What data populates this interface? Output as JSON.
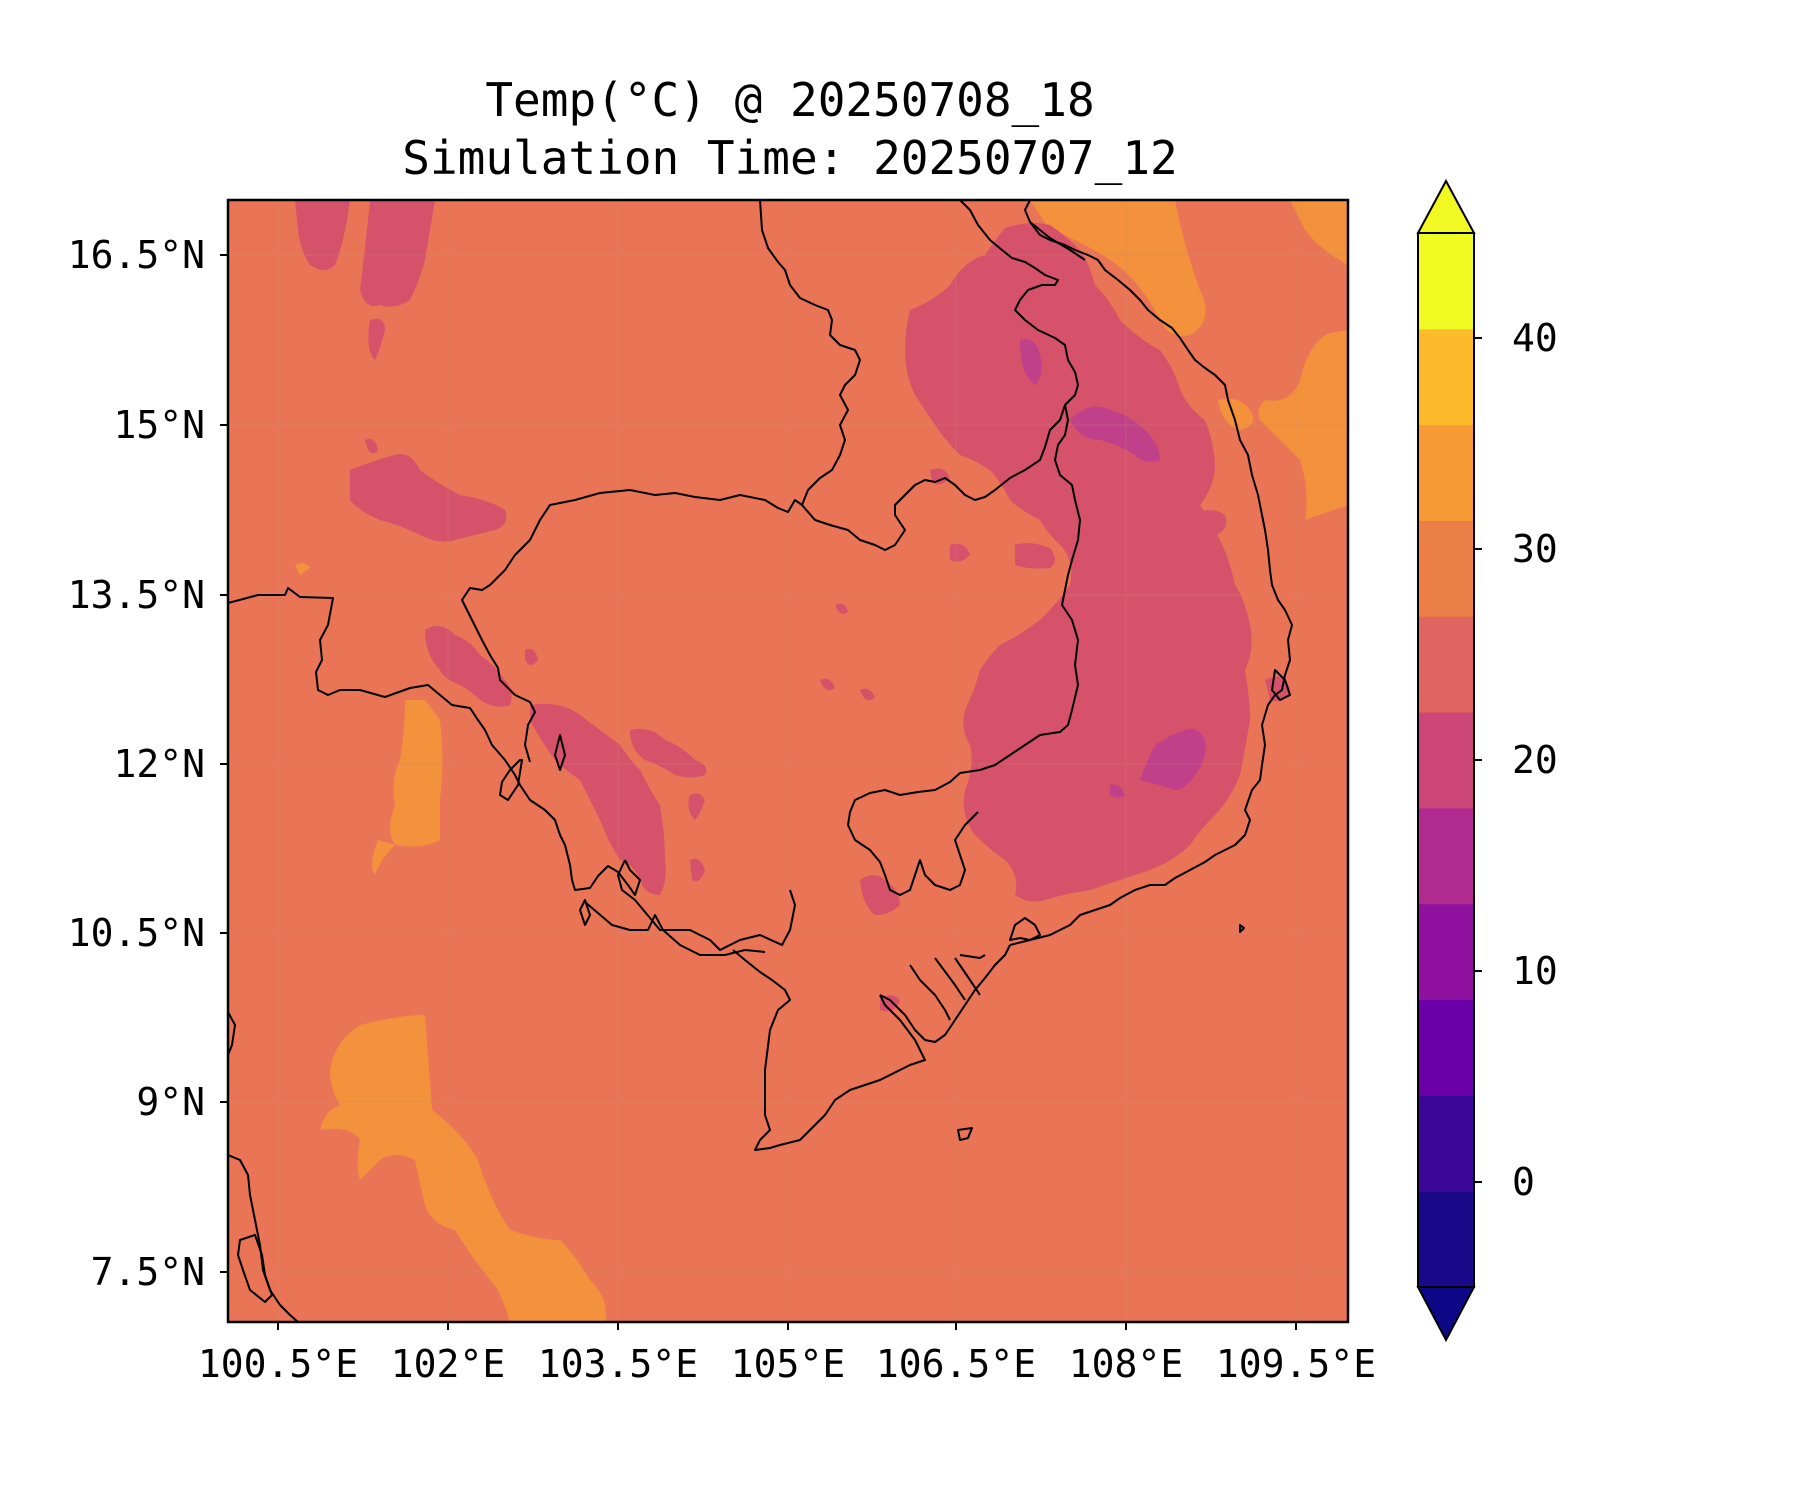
{
  "title": {
    "line1": "Temp(°C) @ 20250708_18",
    "line2": "Simulation Time: 20250707_12"
  },
  "axes": {
    "lat_ticks": [
      "16.5°N",
      "15°N",
      "13.5°N",
      "12°N",
      "10.5°N",
      "9°N",
      "7.5°N"
    ],
    "lon_ticks": [
      "100.5°E",
      "102°E",
      "103.5°E",
      "105°E",
      "106.5°E",
      "108°E",
      "109.5°E"
    ]
  },
  "colorbar": {
    "tick_labels": [
      "40",
      "30",
      "20",
      "10",
      "0"
    ],
    "colors": [
      "#1a0a8a",
      "#3c0698",
      "#6a00a8",
      "#9010a0",
      "#b02a90",
      "#cc4778",
      "#e0645f",
      "#ec7f48",
      "#f79a36",
      "#fdbb2b",
      "#f0f921"
    ],
    "extend": "both"
  },
  "map": {
    "background_color": "#e97456",
    "region_colors": {
      "warm": "#f4913c",
      "cool": "#d6526b",
      "cooler": "#c0408a"
    }
  }
}
